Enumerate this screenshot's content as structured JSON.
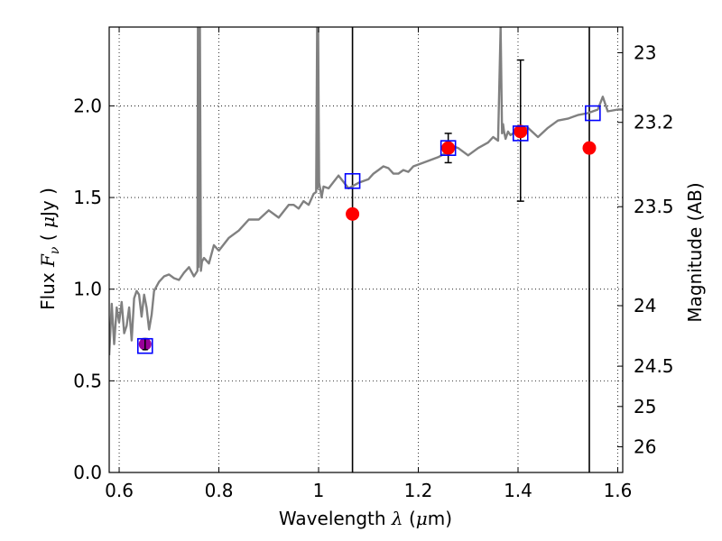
{
  "chart_data": {
    "type": "scatter",
    "title": "",
    "xlabel": {
      "prefix": "Wavelength  ",
      "symbol": "λ",
      "unit_open": " (",
      "unit_mu": "μ",
      "unit_rest": "m)"
    },
    "ylabel": {
      "prefix": "Flux  ",
      "symbol": "F",
      "sub": "ν",
      "unit_open": "  ( ",
      "unit_mu": "μ",
      "unit_rest": "Jy )"
    },
    "y2label": "Magnitude (AB)",
    "xlim": [
      0.58,
      1.61
    ],
    "ylim": [
      0.0,
      2.43
    ],
    "x_ticks": [
      0.6,
      0.8,
      1.0,
      1.2,
      1.4,
      1.6
    ],
    "x_tick_labels": [
      "0.6",
      "0.8",
      "1",
      "1.2",
      "1.4",
      "1.6"
    ],
    "y_ticks": [
      0.0,
      0.5,
      1.0,
      1.5,
      2.0
    ],
    "y_tick_labels": [
      "0.0",
      "0.5",
      "1.0",
      "1.5",
      "2.0"
    ],
    "y2_ticks": [
      {
        "label": "23",
        "flux": 2.29
      },
      {
        "label": "23.2",
        "flux": 1.91
      },
      {
        "label": "23.5",
        "flux": 1.45
      },
      {
        "label": "24",
        "flux": 0.91
      },
      {
        "label": "24.5",
        "flux": 0.58
      },
      {
        "label": "25",
        "flux": 0.36
      },
      {
        "label": "26",
        "flux": 0.14
      }
    ],
    "grid": "dotted",
    "vertical_lines": [
      1.068,
      1.543
    ],
    "model_spectrum": {
      "color": "#808080",
      "x": [
        0.58,
        0.585,
        0.59,
        0.595,
        0.6,
        0.605,
        0.61,
        0.615,
        0.62,
        0.625,
        0.63,
        0.635,
        0.64,
        0.645,
        0.65,
        0.655,
        0.66,
        0.665,
        0.67,
        0.68,
        0.69,
        0.7,
        0.71,
        0.72,
        0.73,
        0.74,
        0.75,
        0.757,
        0.758,
        0.759,
        0.762,
        0.764,
        0.766,
        0.77,
        0.78,
        0.79,
        0.8,
        0.82,
        0.84,
        0.86,
        0.88,
        0.9,
        0.92,
        0.94,
        0.95,
        0.96,
        0.97,
        0.98,
        0.99,
        0.995,
        0.997,
        0.998,
        0.999,
        1.001,
        1.003,
        1.006,
        1.01,
        1.02,
        1.04,
        1.06,
        1.08,
        1.1,
        1.11,
        1.12,
        1.13,
        1.14,
        1.15,
        1.16,
        1.17,
        1.18,
        1.19,
        1.2,
        1.22,
        1.24,
        1.26,
        1.27,
        1.28,
        1.3,
        1.32,
        1.34,
        1.35,
        1.36,
        1.365,
        1.368,
        1.37,
        1.372,
        1.375,
        1.38,
        1.385,
        1.39,
        1.4,
        1.42,
        1.44,
        1.46,
        1.48,
        1.5,
        1.52,
        1.54,
        1.56,
        1.57,
        1.58,
        1.6,
        1.61
      ],
      "y": [
        0.64,
        0.92,
        0.7,
        0.9,
        0.82,
        0.93,
        0.76,
        0.8,
        0.9,
        0.72,
        0.95,
        0.99,
        0.97,
        0.85,
        0.97,
        0.9,
        0.78,
        0.86,
        0.99,
        1.04,
        1.07,
        1.08,
        1.06,
        1.05,
        1.09,
        1.12,
        1.07,
        1.1,
        2.45,
        1.12,
        2.45,
        1.1,
        1.15,
        1.17,
        1.14,
        1.24,
        1.21,
        1.28,
        1.32,
        1.38,
        1.38,
        1.43,
        1.39,
        1.46,
        1.46,
        1.44,
        1.48,
        1.46,
        1.52,
        1.53,
        2.45,
        1.55,
        2.45,
        1.58,
        1.55,
        1.5,
        1.56,
        1.55,
        1.62,
        1.55,
        1.58,
        1.6,
        1.63,
        1.65,
        1.67,
        1.66,
        1.63,
        1.63,
        1.65,
        1.64,
        1.67,
        1.68,
        1.7,
        1.72,
        1.75,
        1.78,
        1.77,
        1.73,
        1.77,
        1.8,
        1.83,
        1.81,
        2.45,
        1.85,
        1.9,
        1.86,
        1.82,
        1.86,
        1.84,
        1.85,
        1.87,
        1.88,
        1.83,
        1.88,
        1.92,
        1.93,
        1.95,
        1.96,
        1.98,
        2.05,
        1.97,
        1.98,
        1.98
      ]
    },
    "model_points": {
      "name": "",
      "marker": "open-square",
      "color": "#0000ff",
      "x": [
        0.652,
        1.068,
        1.26,
        1.405,
        1.55
      ],
      "y": [
        0.69,
        1.59,
        1.77,
        1.85,
        1.96
      ]
    },
    "observed_points": {
      "name": "",
      "marker": "filled-circle",
      "color": "#ff0000",
      "x": [
        1.068,
        1.26,
        1.405,
        1.543
      ],
      "y": [
        1.41,
        1.77,
        1.86,
        1.77
      ],
      "yerr_low": [
        null,
        0.08,
        0.38,
        null
      ],
      "yerr_high": [
        null,
        0.08,
        0.39,
        null
      ]
    },
    "highlight_point": {
      "marker": "filled-circle",
      "color": "#990099",
      "x": 0.652,
      "y": 0.7,
      "yerr": 0.03
    }
  }
}
